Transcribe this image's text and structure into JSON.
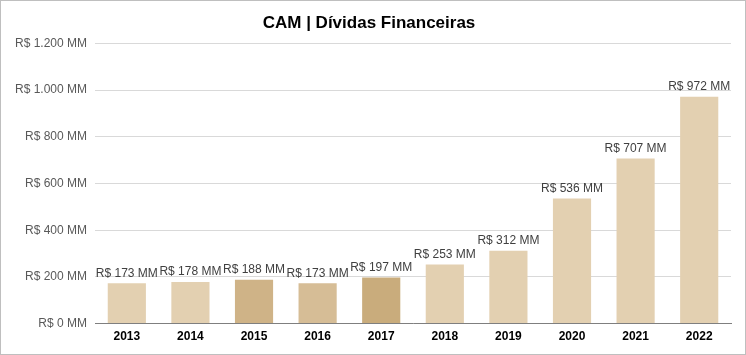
{
  "chart_data": {
    "type": "bar",
    "title": "CAM | Dívidas Financeiras",
    "categories": [
      "2013",
      "2014",
      "2015",
      "2016",
      "2017",
      "2018",
      "2019",
      "2020",
      "2021",
      "2022"
    ],
    "values": [
      173,
      178,
      188,
      173,
      197,
      253,
      312,
      536,
      707,
      972
    ],
    "value_labels": [
      "R$ 173 MM",
      "R$ 178 MM",
      "R$ 188 MM",
      "R$ 173 MM",
      "R$ 197 MM",
      "R$ 253 MM",
      "R$ 312 MM",
      "R$ 536 MM",
      "R$ 707 MM",
      "R$ 972 MM"
    ],
    "colors": [
      "#e3d0b1",
      "#e3d0b1",
      "#cfb387",
      "#d6bd96",
      "#c9ac7c",
      "#e3d0b1",
      "#e3d0b1",
      "#e3d0b1",
      "#e3d0b1",
      "#e3d0b1"
    ],
    "ylim": [
      0,
      1200
    ],
    "yticks": [
      {
        "value": 0,
        "label": "R$ 0 MM"
      },
      {
        "value": 200,
        "label": "R$ 200 MM"
      },
      {
        "value": 400,
        "label": "R$ 400 MM"
      },
      {
        "value": 600,
        "label": "R$ 600 MM"
      },
      {
        "value": 800,
        "label": "R$ 800 MM"
      },
      {
        "value": 1000,
        "label": "R$ 1.000 MM"
      },
      {
        "value": 1200,
        "label": "R$ 1.200 MM"
      }
    ],
    "grid": true,
    "data_labels": true
  }
}
